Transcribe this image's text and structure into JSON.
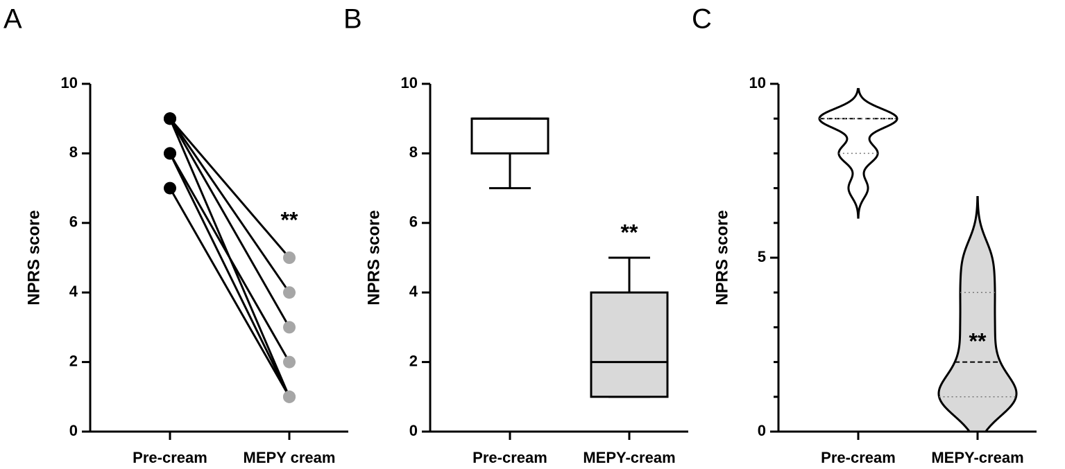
{
  "chart_data": [
    {
      "type": "paired",
      "panel": "A",
      "ylabel": "NPRS score",
      "categories": [
        "Pre-cream",
        "MEPY cream"
      ],
      "ylim": [
        0,
        10
      ],
      "yticks": [
        0,
        2,
        4,
        6,
        8,
        10
      ],
      "line_color": "#000000",
      "point_colors": [
        "#000000",
        "#a6a6a6"
      ],
      "annotation": "**",
      "series": [
        {
          "values": [
            9,
            5
          ]
        },
        {
          "values": [
            9,
            4
          ]
        },
        {
          "values": [
            9,
            3
          ]
        },
        {
          "values": [
            9,
            1
          ]
        },
        {
          "values": [
            8,
            2
          ]
        },
        {
          "values": [
            8,
            1
          ]
        },
        {
          "values": [
            7,
            1
          ]
        }
      ]
    },
    {
      "type": "box",
      "panel": "B",
      "ylabel": "NPRS score",
      "categories": [
        "Pre-cream",
        "MEPY-cream"
      ],
      "ylim": [
        0,
        10
      ],
      "yticks": [
        0,
        2,
        4,
        6,
        8,
        10
      ],
      "annotation": "**",
      "boxes": [
        {
          "min": 7,
          "q1": 8,
          "median": 9,
          "q3": 9,
          "max": 9,
          "color": "#ffffff"
        },
        {
          "min": 1,
          "q1": 1,
          "median": 2,
          "q3": 4,
          "max": 5,
          "color": "#d9d9d9"
        }
      ]
    },
    {
      "type": "violin",
      "panel": "C",
      "ylabel": "NPRS score",
      "categories": [
        "Pre-cream",
        "MEPY-cream"
      ],
      "ylim": [
        0,
        10
      ],
      "yticks": [
        0,
        5,
        10
      ],
      "minor_yticks": [
        1,
        2,
        3,
        4,
        6,
        7,
        8,
        9
      ],
      "annotation": "**",
      "groups": [
        {
          "values": [
            9,
            9,
            9,
            9,
            8,
            8,
            7
          ],
          "median": 9,
          "q1": 8,
          "q3": 9,
          "color": "#ffffff"
        },
        {
          "values": [
            5,
            4,
            3,
            2,
            1,
            1,
            1
          ],
          "median": 2,
          "q1": 1,
          "q3": 4,
          "color": "#d9d9d9"
        }
      ]
    }
  ]
}
